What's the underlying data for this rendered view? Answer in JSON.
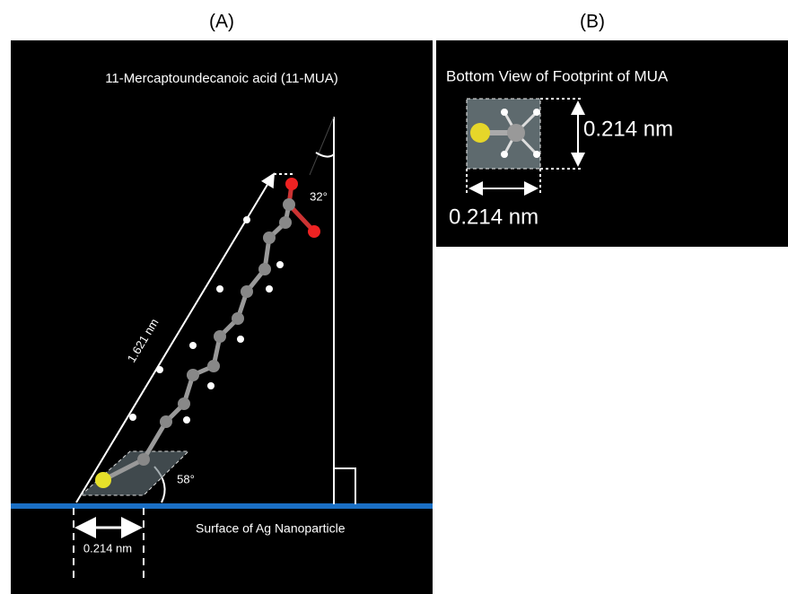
{
  "panel_a": {
    "label": "(A)",
    "title": "11-Mercaptoundecanoic acid (11-MUA)",
    "length_label": "1.621 nm",
    "top_angle": "32°",
    "bottom_angle": "58°",
    "width_label": "0.214 nm",
    "surface_label": "Surface of Ag Nanoparticle"
  },
  "panel_b": {
    "label": "(B)",
    "title": "Bottom View of Footprint of MUA",
    "height_label": "0.214 nm",
    "width_label": "0.214 nm"
  }
}
